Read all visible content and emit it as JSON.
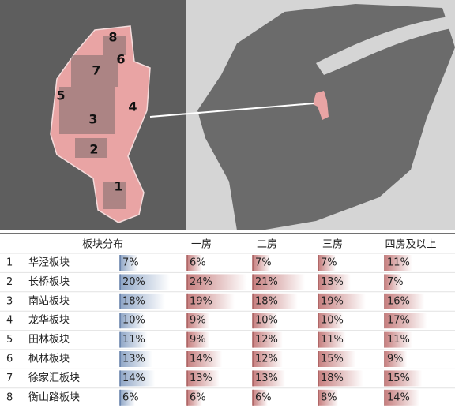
{
  "map": {
    "labels": [
      "1",
      "2",
      "3",
      "4",
      "5",
      "6",
      "7",
      "8"
    ]
  },
  "table": {
    "headers": [
      "板块分布",
      "一房",
      "二房",
      "三房",
      "四房及以上"
    ],
    "rows": [
      {
        "index": "1",
        "name": "华泾板块",
        "values": [
          7,
          6,
          7,
          7,
          11
        ],
        "value_labels": [
          "7%",
          "6%",
          "7%",
          "7%",
          "11%"
        ]
      },
      {
        "index": "2",
        "name": "长桥板块",
        "values": [
          20,
          24,
          21,
          13,
          7
        ],
        "value_labels": [
          "20%",
          "24%",
          "21%",
          "13%",
          "7%"
        ]
      },
      {
        "index": "3",
        "name": "南站板块",
        "values": [
          18,
          19,
          18,
          19,
          16
        ],
        "value_labels": [
          "18%",
          "19%",
          "18%",
          "19%",
          "16%"
        ]
      },
      {
        "index": "4",
        "name": "龙华板块",
        "values": [
          10,
          9,
          10,
          10,
          17
        ],
        "value_labels": [
          "10%",
          "9%",
          "10%",
          "10%",
          "17%"
        ]
      },
      {
        "index": "5",
        "name": "田林板块",
        "values": [
          11,
          9,
          12,
          11,
          11
        ],
        "value_labels": [
          "11%",
          "9%",
          "12%",
          "11%",
          "11%"
        ]
      },
      {
        "index": "6",
        "name": "枫林板块",
        "values": [
          13,
          14,
          12,
          15,
          9
        ],
        "value_labels": [
          "13%",
          "14%",
          "12%",
          "15%",
          "9%"
        ]
      },
      {
        "index": "7",
        "name": "徐家汇板块",
        "values": [
          14,
          13,
          13,
          18,
          15
        ],
        "value_labels": [
          "14%",
          "13%",
          "13%",
          "18%",
          "15%"
        ]
      },
      {
        "index": "8",
        "name": "衡山路板块",
        "values": [
          6,
          6,
          6,
          8,
          14
        ],
        "value_labels": [
          "6%",
          "6%",
          "6%",
          "8%",
          "14%"
        ]
      }
    ]
  }
}
